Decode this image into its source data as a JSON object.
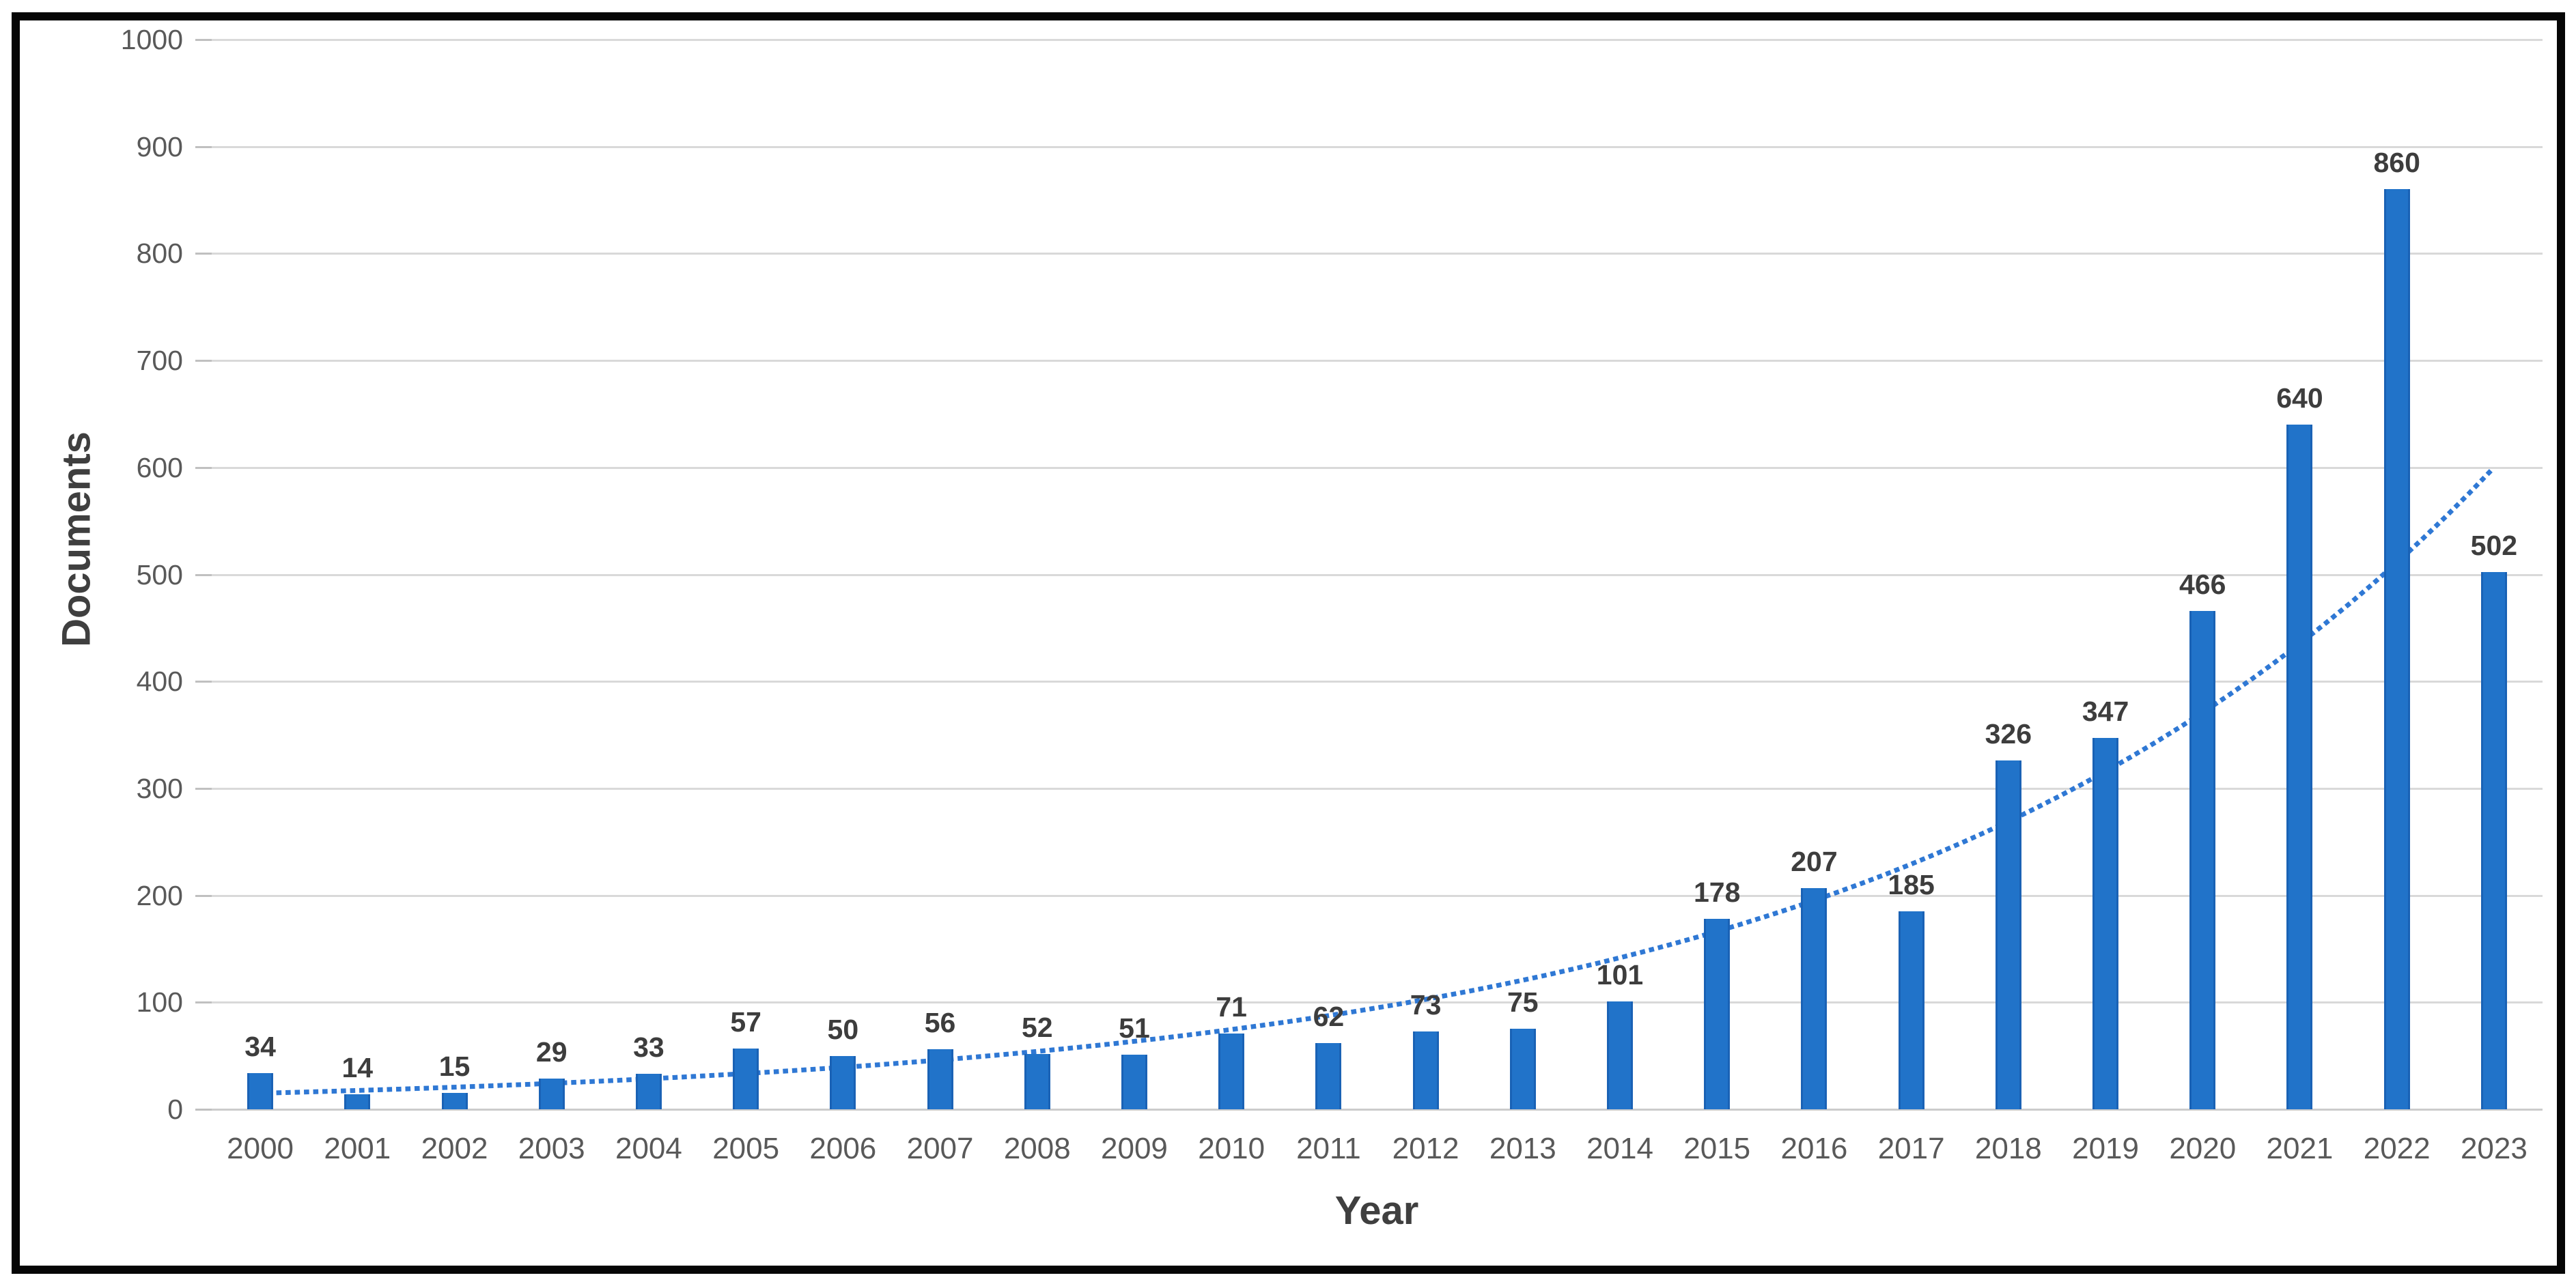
{
  "figure": {
    "background": "#ffffff",
    "frame_border_color": "#060606"
  },
  "chart_data": {
    "type": "bar",
    "title": "",
    "xlabel": "Year",
    "ylabel": "Documents",
    "categories": [
      "2000",
      "2001",
      "2002",
      "2003",
      "2004",
      "2005",
      "2006",
      "2007",
      "2008",
      "2009",
      "2010",
      "2011",
      "2012",
      "2013",
      "2014",
      "2015",
      "2016",
      "2017",
      "2018",
      "2019",
      "2020",
      "2021",
      "2022",
      "2023"
    ],
    "values": [
      34,
      14,
      15,
      29,
      33,
      57,
      50,
      56,
      52,
      51,
      71,
      62,
      73,
      75,
      101,
      178,
      207,
      185,
      326,
      347,
      466,
      640,
      860,
      502
    ],
    "data_labels_shown": true,
    "ylim": [
      0,
      1000
    ],
    "yticks": [
      0,
      100,
      200,
      300,
      400,
      500,
      600,
      700,
      800,
      900,
      1000
    ],
    "grid": "horizontal",
    "legend": "none",
    "bar_color": "#2173c9",
    "gridline_color": "#d9d9d9",
    "tick_label_color": "#595959",
    "data_label_color": "#3d3d3d",
    "trendline": {
      "type": "exponential",
      "style": "dotted",
      "color": "#2f78d4",
      "start_value": 15,
      "end_value": 600
    }
  }
}
